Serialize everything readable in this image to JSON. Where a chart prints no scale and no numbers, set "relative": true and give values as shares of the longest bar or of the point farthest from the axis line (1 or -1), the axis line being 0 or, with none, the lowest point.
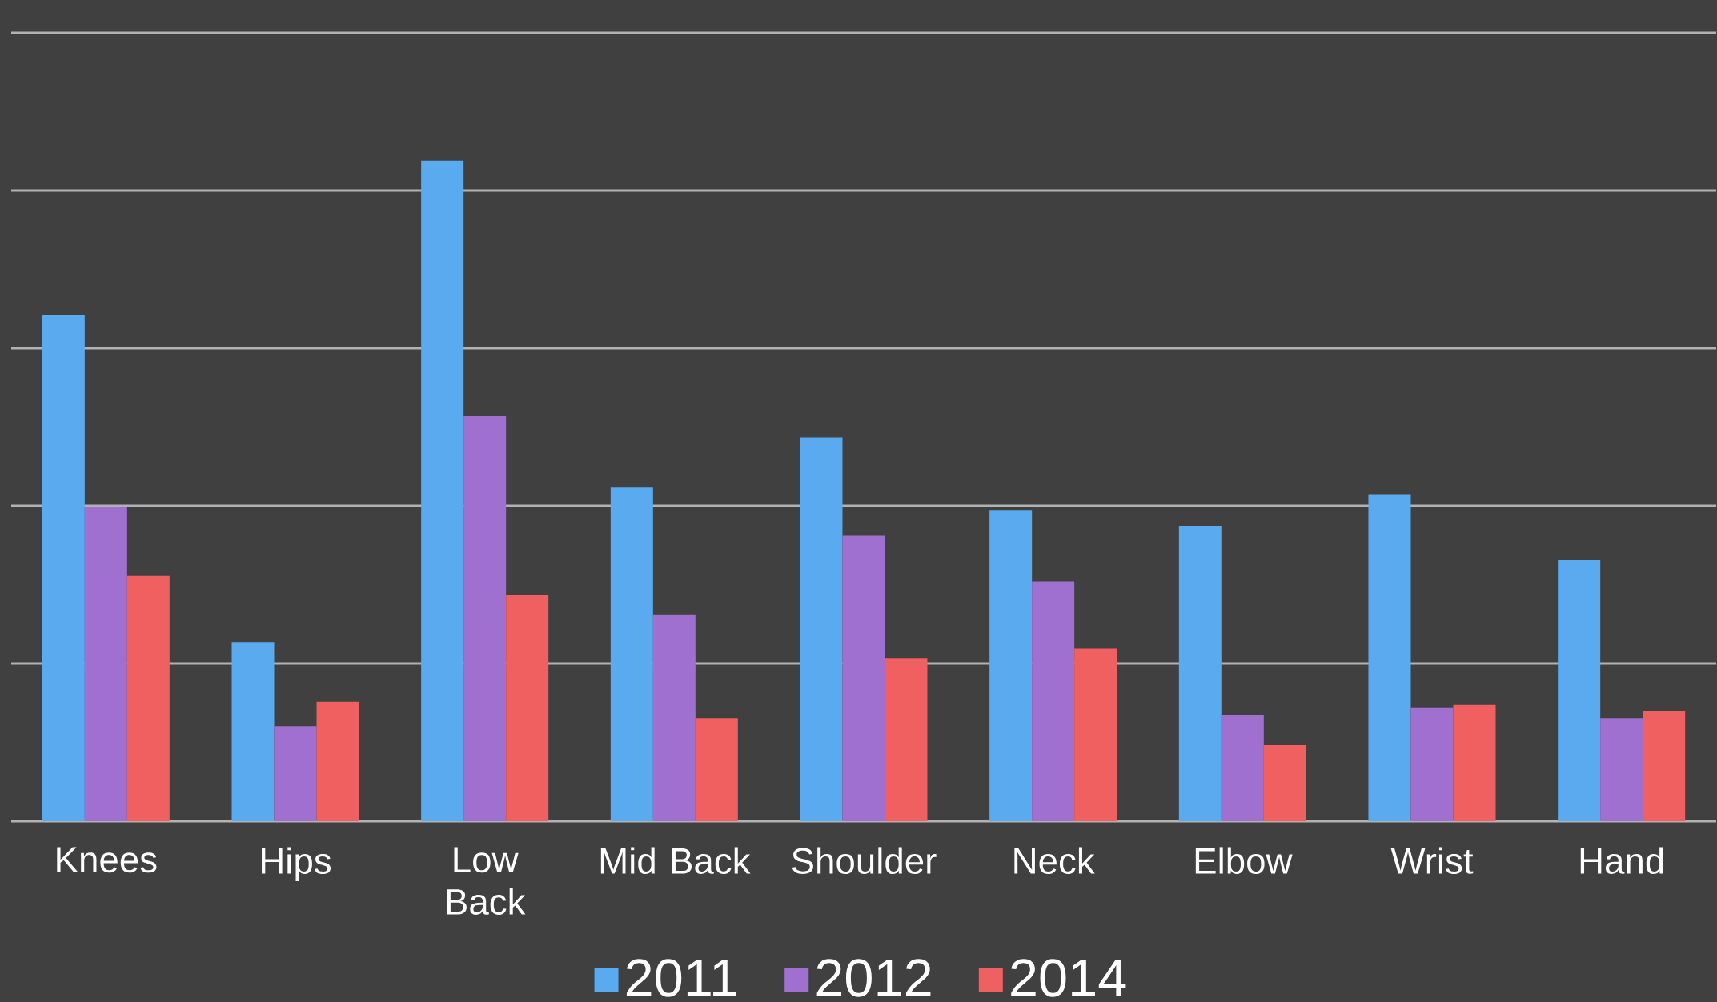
{
  "chart_data": {
    "type": "bar",
    "relative": true,
    "grid": "y",
    "legend": "bottom",
    "categories": [
      "Knees",
      "Hips",
      "Low Back",
      "Mid Back",
      "Shoulder",
      "Neck",
      "Elbow",
      "Wrist",
      "Hand"
    ],
    "series": [
      {
        "name": "2011",
        "color": "#5aaaf0",
        "values": [
          0.766,
          0.271,
          1,
          0.505,
          0.581,
          0.471,
          0.447,
          0.495,
          0.395
        ]
      },
      {
        "name": "2012",
        "color": "#a070d0",
        "values": [
          0.476,
          0.144,
          0.613,
          0.313,
          0.432,
          0.363,
          0.161,
          0.171,
          0.156
        ]
      },
      {
        "name": "2014",
        "color": "#f06060",
        "values": [
          0.371,
          0.181,
          0.342,
          0.156,
          0.247,
          0.261,
          0.115,
          0.176,
          0.166
        ]
      }
    ]
  }
}
